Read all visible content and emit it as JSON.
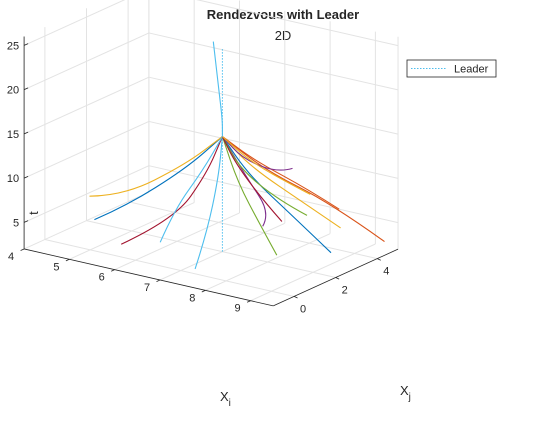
{
  "chart_data": {
    "type": "line",
    "title": "Rendezvous with Leader",
    "subtitle": "2D",
    "xlabel": "X",
    "xlabel_sub": "i",
    "ylabel": "X",
    "ylabel_sub": "j",
    "zlabel": "t",
    "xlim": [
      4,
      9.5
    ],
    "ylim": [
      -1,
      5
    ],
    "zlim": [
      2,
      26
    ],
    "x_ticks": [
      "4",
      "5",
      "6",
      "7",
      "8",
      "9"
    ],
    "y_ticks": [
      "0",
      "2",
      "4"
    ],
    "z_ticks": [
      "5",
      "10",
      "15",
      "20",
      "25"
    ],
    "grid": true,
    "legend": {
      "location": "top-right",
      "entries": [
        "Leader"
      ]
    },
    "leader": {
      "name": "Leader",
      "color": "#4DBEEE",
      "x": 7,
      "y": 2,
      "z": [
        2,
        25
      ]
    },
    "focus": {
      "x": 7,
      "y": 2,
      "z": 15
    },
    "series": [
      {
        "color": "#0072BD",
        "points": [
          [
            5,
            0.2,
            5.2
          ],
          [
            5.6,
            0.4,
            7.2
          ],
          [
            6.5,
            1.3,
            11.5
          ],
          [
            7,
            2,
            15
          ]
        ]
      },
      {
        "color": "#D95319",
        "points": [
          [
            9.2,
            5,
            2.5
          ],
          [
            8.5,
            4,
            7.0
          ],
          [
            7.6,
            2.8,
            11.0
          ],
          [
            7,
            2,
            15
          ]
        ]
      },
      {
        "color": "#EDB120",
        "points": [
          [
            4.8,
            0.4,
            7.4
          ],
          [
            5.6,
            0.3,
            8.5
          ],
          [
            6.5,
            1.3,
            12.0
          ],
          [
            7,
            2,
            15
          ]
        ]
      },
      {
        "color": "#7E2F8E",
        "points": [
          [
            7.2,
            3.5,
            3.5
          ],
          [
            7.6,
            3.0,
            6.0
          ],
          [
            7.4,
            2.3,
            10.5
          ],
          [
            7,
            2,
            15
          ]
        ]
      },
      {
        "color": "#77AC30",
        "points": [
          [
            8.2,
            2.0,
            3.0
          ],
          [
            7.7,
            2.3,
            5.5
          ],
          [
            7.3,
            2.1,
            10.0
          ],
          [
            7,
            2,
            15
          ]
        ]
      },
      {
        "color": "#4DBEEE",
        "points": [
          [
            7.5,
            -0.4,
            3.2
          ],
          [
            7.2,
            0.8,
            5.5
          ],
          [
            7.1,
            1.6,
            11.0
          ],
          [
            7,
            2,
            15
          ]
        ]
      },
      {
        "color": "#A2142F",
        "points": [
          [
            5.5,
            0.4,
            2.8
          ],
          [
            6.4,
            1.0,
            6.0
          ],
          [
            6.8,
            1.7,
            11.0
          ],
          [
            7,
            2,
            15
          ]
        ]
      },
      {
        "color": "#0072BD",
        "points": [
          [
            8.8,
            3.3,
            2.6
          ],
          [
            8.2,
            2.8,
            6.5
          ],
          [
            7.5,
            2.2,
            11.0
          ],
          [
            7,
            2,
            15
          ]
        ]
      },
      {
        "color": "#D95319",
        "points": [
          [
            8.2,
            5.0,
            5.0
          ],
          [
            8.0,
            4.0,
            8.0
          ],
          [
            7.4,
            2.7,
            12.0
          ],
          [
            7,
            2,
            15
          ]
        ]
      },
      {
        "color": "#EDB120",
        "points": [
          [
            8.6,
            4.2,
            4.2
          ],
          [
            8.2,
            3.5,
            7.0
          ],
          [
            7.4,
            2.5,
            11.5
          ],
          [
            7,
            2,
            15
          ]
        ]
      },
      {
        "color": "#7E2F8E",
        "points": [
          [
            7.4,
            4.5,
            9.2
          ],
          [
            7.5,
            3.6,
            9.8
          ],
          [
            7.2,
            2.6,
            12.0
          ],
          [
            7,
            2,
            15
          ]
        ]
      },
      {
        "color": "#77AC30",
        "points": [
          [
            8.5,
            2.8,
            7.0
          ],
          [
            8.0,
            2.5,
            8.5
          ],
          [
            7.3,
            2.2,
            11.5
          ],
          [
            7,
            2,
            15
          ]
        ]
      },
      {
        "color": "#4DBEEE",
        "points": [
          [
            6.5,
            0.1,
            4.5
          ],
          [
            6.5,
            0.8,
            7.5
          ],
          [
            6.8,
            1.5,
            11.5
          ],
          [
            7,
            2,
            15
          ]
        ]
      },
      {
        "color": "#A2142F",
        "points": [
          [
            7.9,
            2.9,
            5.5
          ],
          [
            7.6,
            2.6,
            8.0
          ],
          [
            7.2,
            2.2,
            12.0
          ],
          [
            7,
            2,
            15
          ]
        ]
      },
      {
        "color": "#EDB120",
        "points": [
          [
            7.7,
            4.7,
            6.4
          ],
          [
            7.7,
            4.0,
            8.0
          ],
          [
            7.3,
            2.8,
            11.5
          ],
          [
            7,
            2,
            15
          ]
        ]
      },
      {
        "color": "#4DBEEE",
        "points": [
          [
            6.8,
            2.0,
            25.5
          ],
          [
            6.9,
            2.0,
            21.0
          ],
          [
            7.0,
            2.0,
            17.0
          ],
          [
            7,
            2,
            15
          ]
        ]
      }
    ]
  }
}
